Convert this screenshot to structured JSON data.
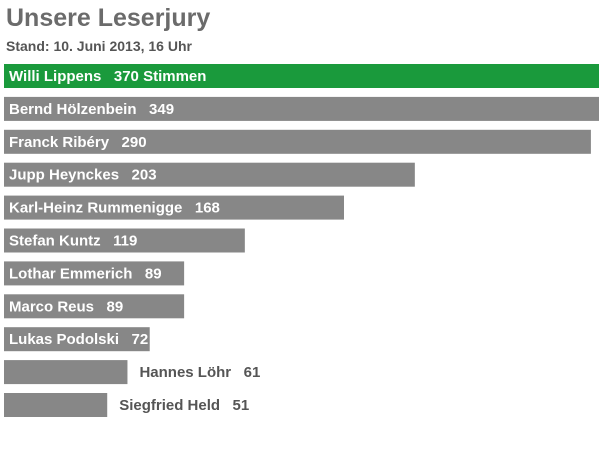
{
  "title": "Unsere Leserjury",
  "subtitle": "Stand: 10. Juni 2013, 16 Uhr",
  "chart_data": {
    "type": "bar",
    "orientation": "horizontal",
    "categories": [
      "Willi Lippens",
      "Bernd Hölzenbein",
      "Franck Ribéry",
      "Jupp Heynckes",
      "Karl-Heinz Rummenigge",
      "Stefan Kuntz",
      "Lothar Emmerich",
      "Marco Reus",
      "Lukas Podolski",
      "Hannes Löhr",
      "Siegfried Held"
    ],
    "values": [
      370,
      349,
      290,
      203,
      168,
      119,
      89,
      89,
      72,
      61,
      51
    ],
    "labels": [
      "Willi Lippens   370 Stimmen",
      "Bernd Hölzenbein   349",
      "Franck Ribéry   290",
      "Jupp Heynckes   203",
      "Karl-Heinz Rummenigge   168",
      "Stefan Kuntz   119",
      "Lothar Emmerich   89",
      "Marco Reus   89",
      "Lukas Podolski   72",
      "Hannes Löhr   61",
      "Siegfried Held   51"
    ],
    "highlight_index": 0,
    "colors": {
      "highlight": "#1a9a3c",
      "bar": "#878787",
      "label_inside": "#ffffff",
      "label_outside": "#555555"
    }
  }
}
